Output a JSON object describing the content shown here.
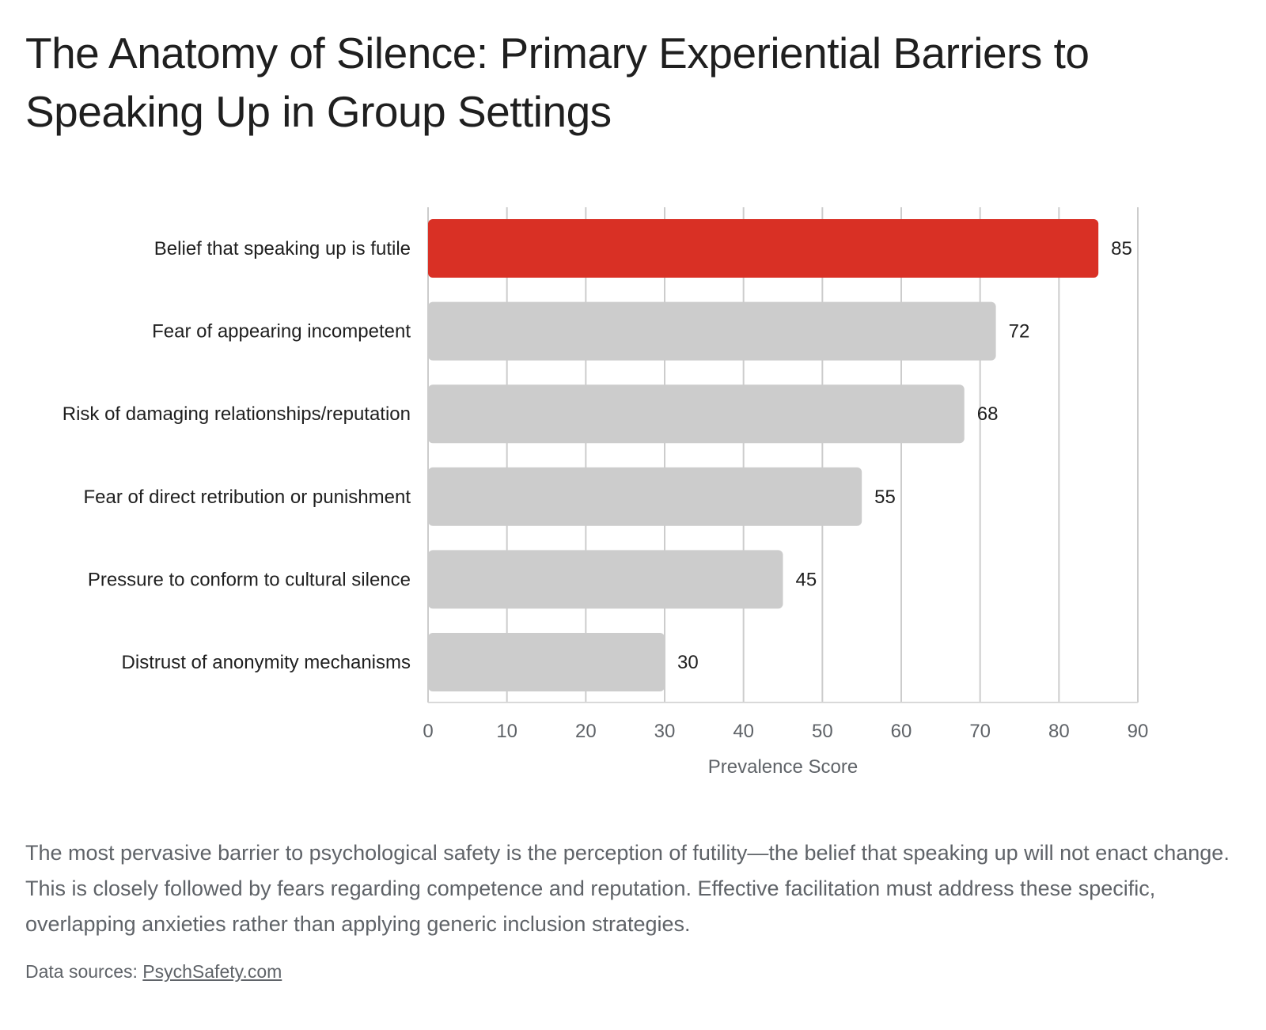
{
  "title": "The Anatomy of Silence: Primary Experiential Barriers to Speaking Up in Group Settings",
  "caption": "The most pervasive barrier to psychological safety is the perception of futility—the belief that speaking up will not enact change. This is closely followed by fears regarding competence and reputation. Effective facilitation must address these specific, overlapping anxieties rather than applying generic inclusion strategies.",
  "sources": {
    "prefix": "Data sources: ",
    "link_text": "PsychSafety.com"
  },
  "colors": {
    "highlight": "#d93025",
    "default_bar": "#cccccc",
    "grid": "#cccccc",
    "baseline": "#d9d9d9"
  },
  "chart_data": {
    "type": "bar",
    "orientation": "horizontal",
    "categories": [
      "Belief that speaking up is futile",
      "Fear of appearing incompetent",
      "Risk of damaging relationships/reputation",
      "Fear of direct retribution or punishment",
      "Pressure to conform to cultural silence",
      "Distrust of anonymity mechanisms"
    ],
    "values": [
      85,
      72,
      68,
      55,
      45,
      30
    ],
    "highlight_index": 0,
    "xlabel": "Prevalence Score",
    "ylabel": "",
    "xlim": [
      0,
      90
    ],
    "xticks": [
      0,
      10,
      20,
      30,
      40,
      50,
      60,
      70,
      80,
      90
    ],
    "grid": true,
    "legend": "none"
  }
}
